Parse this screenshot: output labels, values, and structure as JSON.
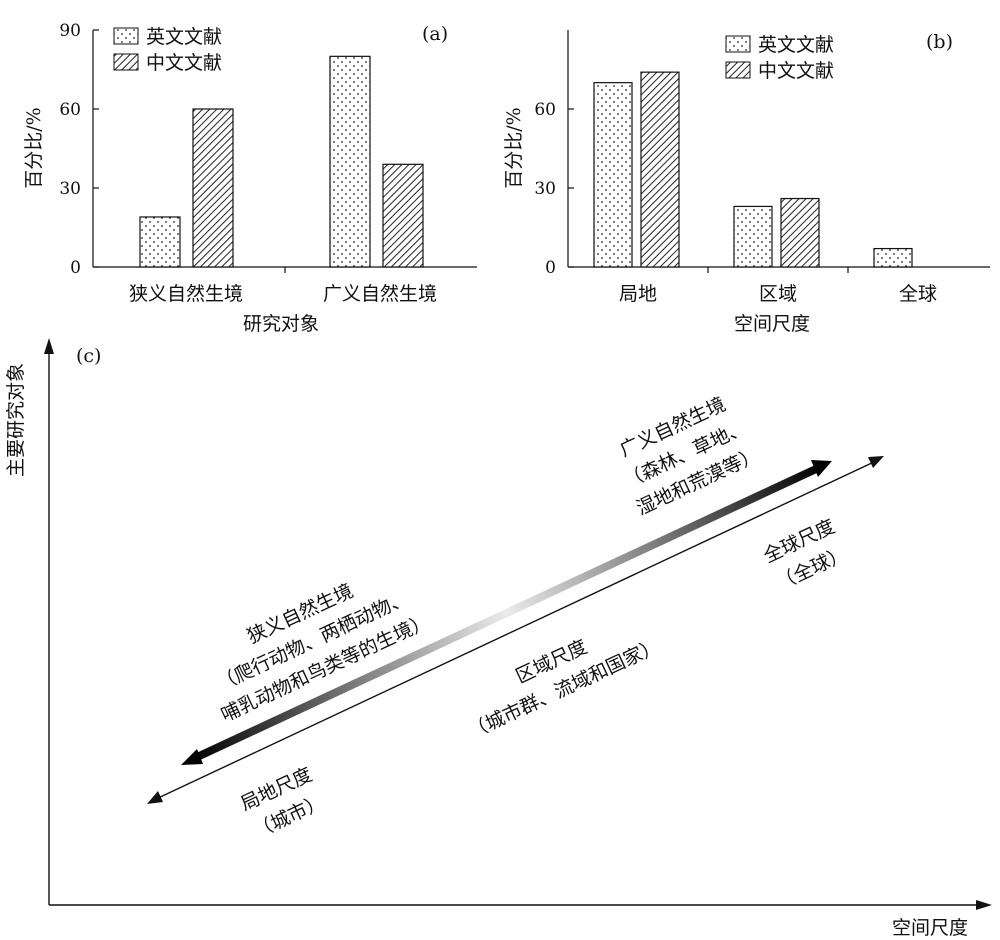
{
  "chart_data": [
    {
      "panel": "(a)",
      "type": "bar",
      "categories": [
        "狭义自然生境",
        "广义自然生境"
      ],
      "series": [
        {
          "name": "英文文献",
          "values": [
            19,
            80
          ]
        },
        {
          "name": "中文文献",
          "values": [
            60,
            39
          ]
        }
      ],
      "xlabel": "研究对象",
      "ylabel": "百分比/%",
      "ylim": [
        0,
        90
      ],
      "yticks": [
        "0",
        "30",
        "60",
        "90"
      ],
      "legend": "top-left",
      "grid": false
    },
    {
      "panel": "(b)",
      "type": "bar",
      "categories": [
        "局地",
        "区域",
        "全球"
      ],
      "series": [
        {
          "name": "英文文献",
          "values": [
            70,
            23,
            7
          ]
        },
        {
          "name": "中文文献",
          "values": [
            74,
            26,
            0
          ]
        }
      ],
      "xlabel": "空间尺度",
      "ylabel": "百分比/%",
      "ylim": [
        0,
        90
      ],
      "yticks": [
        "0",
        "30",
        "60"
      ],
      "legend": "top-left",
      "grid": false
    }
  ],
  "panel_c": {
    "tag": "(c)",
    "ylabel": "主要研究对象",
    "xlabel": "空间尺度",
    "narrow_lines": [
      "狭义自然生境",
      "（爬行动物、两栖动物、",
      "哺乳动物和鸟类等的生境）"
    ],
    "broad_lines": [
      "广义自然生境",
      "（森林、草地、",
      "湿地和荒漠等）"
    ],
    "local_lines": [
      "局地尺度",
      "（城市）"
    ],
    "regional_lines": [
      "区域尺度",
      "（城市群、流域和国家）"
    ],
    "global_lines": [
      "全球尺度",
      "（全球）"
    ]
  }
}
